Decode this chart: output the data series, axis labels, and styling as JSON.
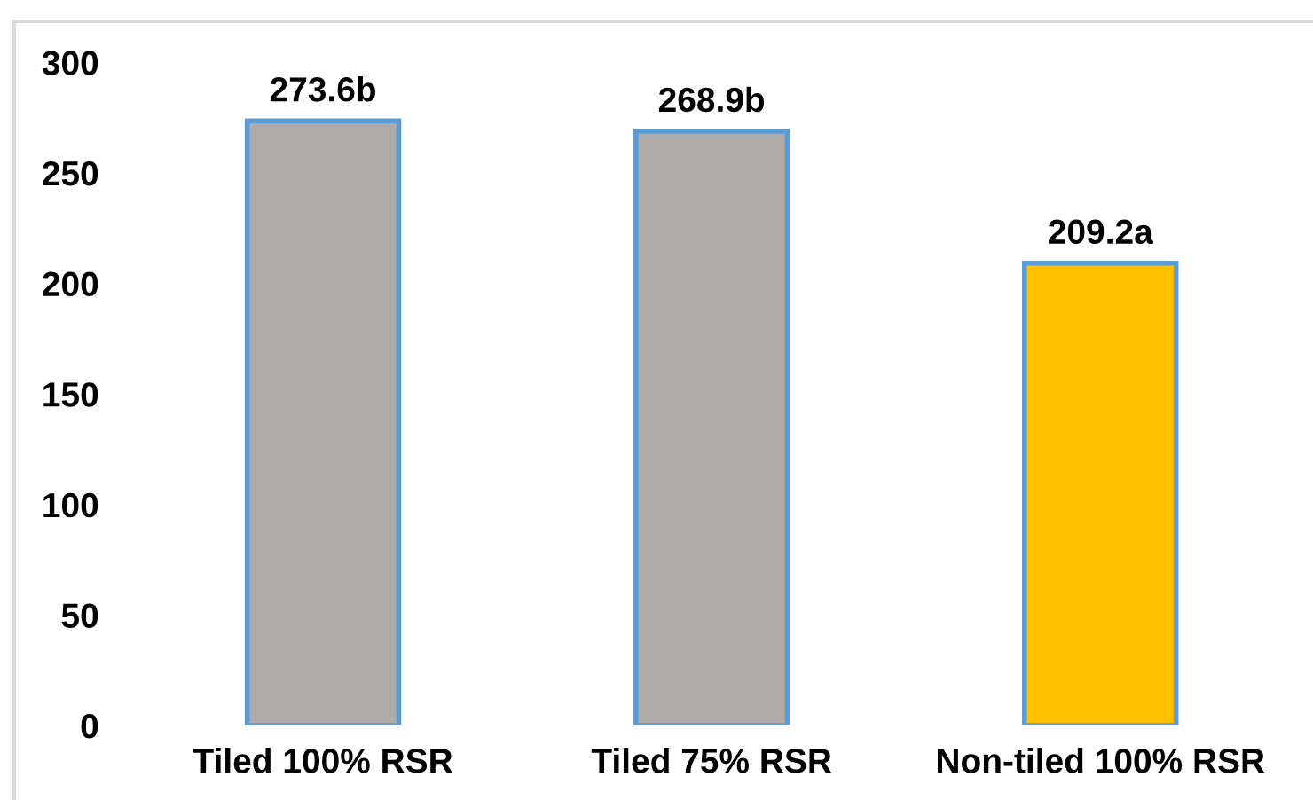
{
  "chart_data": {
    "type": "bar",
    "categories": [
      "Tiled 100% RSR",
      "Tiled 75% RSR",
      "Non-tiled 100% RSR"
    ],
    "values": [
      273.6,
      268.9,
      209.2
    ],
    "colors": [
      "#aeaaaa",
      "#aeaaaa",
      "#ffc000"
    ],
    "value_labels": [
      "273.6b",
      "268.9b",
      "209.2a"
    ],
    "ylim": [
      0,
      300
    ],
    "yticks": [
      0,
      50,
      100,
      150,
      200,
      250,
      300
    ],
    "grid": false
  }
}
